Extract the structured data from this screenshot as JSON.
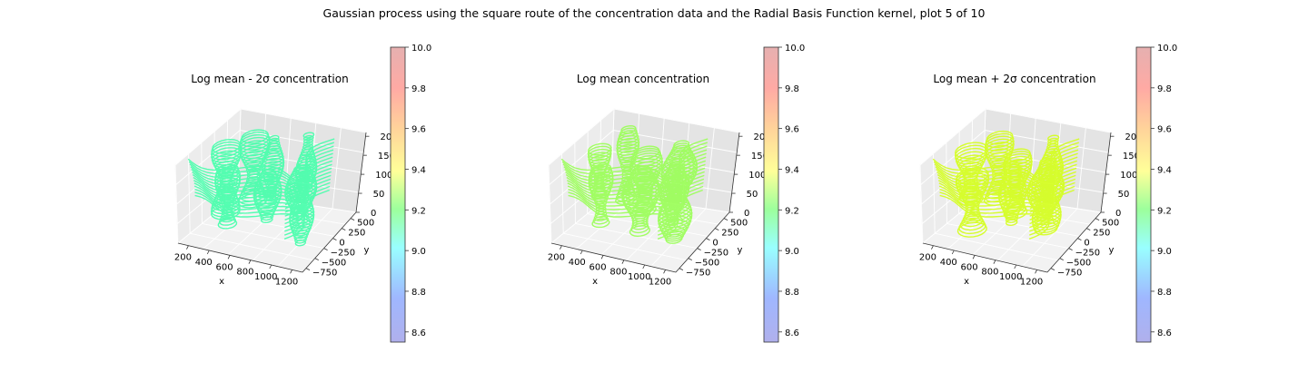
{
  "suptitle": "Gaussian process using the square route of the concentration data and the Radial Basis Function kernel, plot 5 of 10",
  "chart_data": [
    {
      "type": "3d-contour-surface",
      "title": "Log mean - 2σ concentration",
      "xlabel": "x",
      "ylabel": "y",
      "zlabel": "",
      "x_ticks": [
        200,
        400,
        600,
        800,
        1000,
        1200
      ],
      "y_ticks": [
        -750,
        -500,
        -250,
        0,
        250,
        500
      ],
      "z_ticks": [
        0,
        50,
        100,
        150,
        200
      ],
      "xlim": [
        100,
        1300
      ],
      "ylim": [
        -850,
        650
      ],
      "zlim": [
        0,
        210
      ],
      "surface_value": 9.22,
      "surface_color": "#44ffaa",
      "colorbar": {
        "ticks": [
          8.6,
          8.8,
          9.0,
          9.2,
          9.4,
          9.6,
          9.8,
          10.0
        ],
        "range": [
          8.55,
          10.0
        ]
      }
    },
    {
      "type": "3d-contour-surface",
      "title": "Log mean concentration",
      "xlabel": "x",
      "ylabel": "y",
      "zlabel": "",
      "x_ticks": [
        200,
        400,
        600,
        800,
        1000,
        1200
      ],
      "y_ticks": [
        -750,
        -500,
        -250,
        0,
        250,
        500
      ],
      "z_ticks": [
        0,
        50,
        100,
        150,
        200
      ],
      "xlim": [
        100,
        1300
      ],
      "ylim": [
        -850,
        650
      ],
      "zlim": [
        0,
        210
      ],
      "surface_value": 9.33,
      "surface_color": "#99ff55",
      "colorbar": {
        "ticks": [
          8.6,
          8.8,
          9.0,
          9.2,
          9.4,
          9.6,
          9.8,
          10.0
        ],
        "range": [
          8.55,
          10.0
        ]
      }
    },
    {
      "type": "3d-contour-surface",
      "title": "Log mean + 2σ concentration",
      "xlabel": "x",
      "ylabel": "y",
      "zlabel": "",
      "x_ticks": [
        200,
        400,
        600,
        800,
        1000,
        1200
      ],
      "y_ticks": [
        -750,
        -500,
        -250,
        0,
        250,
        500
      ],
      "z_ticks": [
        0,
        50,
        100,
        150,
        200
      ],
      "xlim": [
        100,
        1300
      ],
      "ylim": [
        -850,
        650
      ],
      "zlim": [
        0,
        210
      ],
      "surface_value": 9.42,
      "surface_color": "#d4ff1a",
      "colorbar": {
        "ticks": [
          8.6,
          8.8,
          9.0,
          9.2,
          9.4,
          9.6,
          9.8,
          10.0
        ],
        "range": [
          8.55,
          10.0
        ]
      }
    }
  ]
}
